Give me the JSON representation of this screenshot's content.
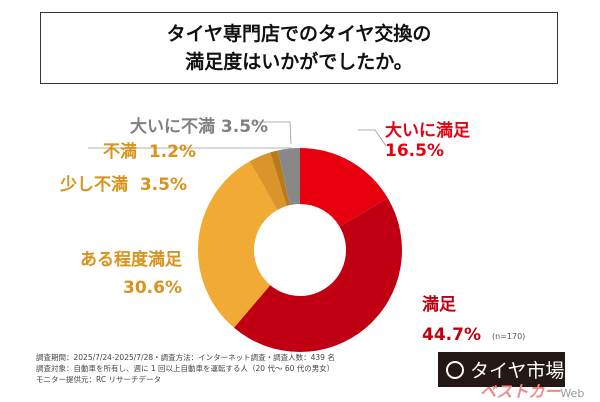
{
  "title": {
    "line1": "タイヤ専門店でのタイヤ交換の",
    "line2": "満足度はいかがでしたか。"
  },
  "chart_data": {
    "type": "pie",
    "donut": true,
    "title": "タイヤ専門店でのタイヤ交換の満足度はいかがでしたか。",
    "categories": [
      "大いに満足",
      "満足",
      "ある程度満足",
      "少し不満",
      "不満",
      "大いに不満"
    ],
    "values": [
      16.5,
      44.7,
      30.6,
      3.5,
      1.2,
      3.5
    ],
    "labels": [
      "16.5%",
      "44.7%",
      "30.6%",
      "3.5%",
      "1.2%",
      "3.5%"
    ],
    "colors": [
      "#e8000f",
      "#c00012",
      "#f1ab35",
      "#d9952a",
      "#b97a1c",
      "#888888"
    ],
    "label_colors": [
      "#e60012",
      "#c00012",
      "#d9921c",
      "#d9921c",
      "#d9921c",
      "#808080"
    ]
  },
  "sample": "(n=170)",
  "footer": [
    "調査期間：2025/7/24-2025/7/28・調査方法：インターネット調査・調査人数：439 名",
    "調査対象：自動車を所有し、週に 1 回以上自動車を運転する人（20 代～ 60 代の男女）",
    "モニター提供元：RC リサーチデータ"
  ],
  "logo": "タイヤ市場",
  "watermark": {
    "brand": "ベストカー",
    "suffix": "Web"
  }
}
